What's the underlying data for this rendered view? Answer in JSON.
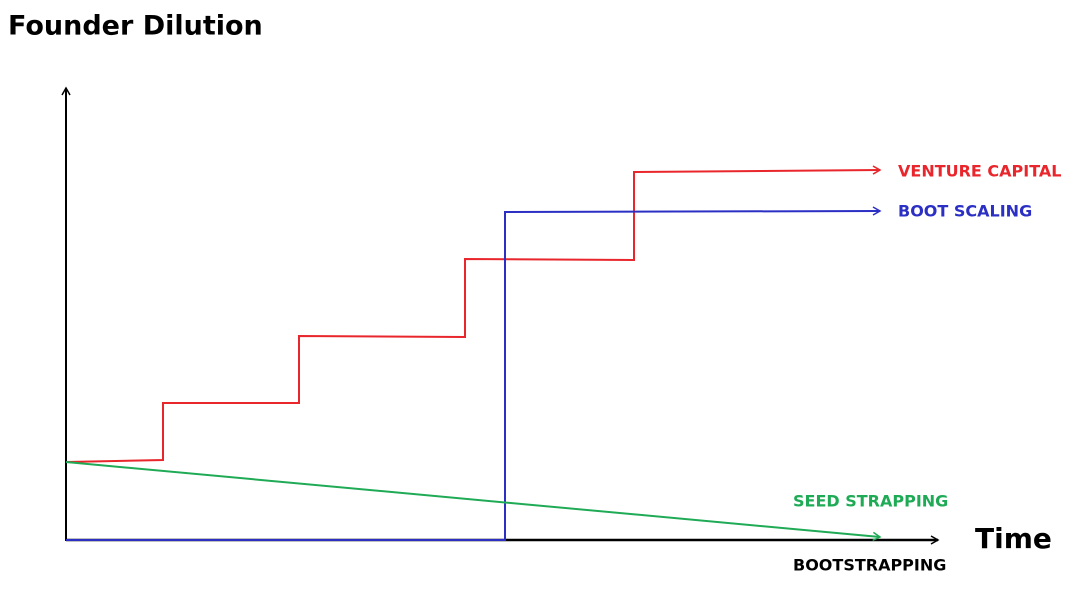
{
  "title": "Founder Dilution",
  "axis": {
    "x_label": "Time"
  },
  "lines": [
    {
      "label": "VENTURE CAPITAL"
    },
    {
      "label": "BOOT SCALING"
    },
    {
      "label": "SEED STRAPPING"
    },
    {
      "label": "BOOTSTRAPPING"
    }
  ]
}
